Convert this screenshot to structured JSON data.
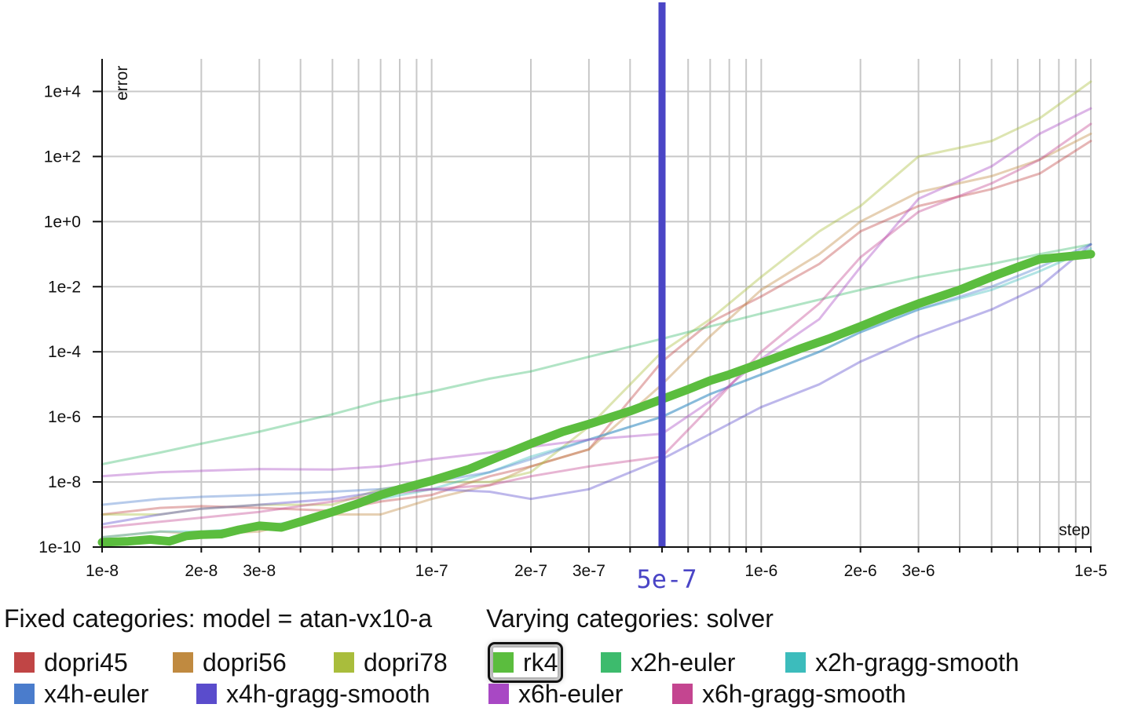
{
  "chart_data": {
    "type": "line",
    "x_scale": "log",
    "y_scale": "log",
    "xlim": [
      1e-08,
      1e-05
    ],
    "ylim": [
      1e-10,
      100000.0
    ],
    "xlabel": "step",
    "ylabel": "error",
    "grid": true,
    "x_ticks": [
      {
        "value": 1e-08,
        "label": "1e-8"
      },
      {
        "value": 2e-08,
        "label": "2e-8"
      },
      {
        "value": 3e-08,
        "label": "3e-8"
      },
      {
        "value": 1e-07,
        "label": "1e-7"
      },
      {
        "value": 2e-07,
        "label": "2e-7"
      },
      {
        "value": 3e-07,
        "label": "3e-7"
      },
      {
        "value": 1e-06,
        "label": "1e-6"
      },
      {
        "value": 2e-06,
        "label": "2e-6"
      },
      {
        "value": 3e-06,
        "label": "3e-6"
      },
      {
        "value": 1e-05,
        "label": "1e-5"
      }
    ],
    "y_ticks": [
      {
        "value": 1e-10,
        "label": "1e-10"
      },
      {
        "value": 1e-08,
        "label": "1e-8"
      },
      {
        "value": 1e-06,
        "label": "1e-6"
      },
      {
        "value": 0.0001,
        "label": "1e-4"
      },
      {
        "value": 0.01,
        "label": "1e-2"
      },
      {
        "value": 1,
        "label": "1e+0"
      },
      {
        "value": 100,
        "label": "1e+2"
      },
      {
        "value": 10000,
        "label": "1e+4"
      }
    ],
    "cursor": {
      "x": 5e-07,
      "label": "5e-7",
      "color": "#4a45c6"
    },
    "highlighted_series": "rk4",
    "series": [
      {
        "name": "dopri45",
        "color": "#c04545",
        "points": [
          [
            1e-08,
            1e-09
          ],
          [
            1.5e-08,
            1.6e-09
          ],
          [
            2e-08,
            1.8e-09
          ],
          [
            3e-08,
            1.6e-09
          ],
          [
            5e-08,
            1.3e-09
          ],
          [
            7e-08,
            2.5e-09
          ],
          [
            1e-07,
            4e-09
          ],
          [
            1.5e-07,
            1.5e-08
          ],
          [
            2e-07,
            3e-08
          ],
          [
            3e-07,
            1e-07
          ],
          [
            5e-07,
            5e-05
          ],
          [
            7e-07,
            0.0008
          ],
          [
            1e-06,
            0.005
          ],
          [
            1.5e-06,
            0.05
          ],
          [
            2e-06,
            0.5
          ],
          [
            3e-06,
            3
          ],
          [
            5e-06,
            10
          ],
          [
            7e-06,
            30
          ],
          [
            1e-05,
            300
          ]
        ]
      },
      {
        "name": "dopri56",
        "color": "#c08a40",
        "points": [
          [
            1e-08,
            2e-10
          ],
          [
            1.5e-08,
            3e-10
          ],
          [
            2e-08,
            2.5e-10
          ],
          [
            3e-08,
            3e-10
          ],
          [
            5e-08,
            1e-09
          ],
          [
            7e-08,
            1e-09
          ],
          [
            1e-07,
            3e-09
          ],
          [
            1.5e-07,
            8e-09
          ],
          [
            2e-07,
            3e-08
          ],
          [
            3e-07,
            1e-07
          ],
          [
            5e-07,
            1e-05
          ],
          [
            7e-07,
            0.0003
          ],
          [
            1e-06,
            0.008
          ],
          [
            1.5e-06,
            0.1
          ],
          [
            2e-06,
            1
          ],
          [
            3e-06,
            8
          ],
          [
            5e-06,
            25
          ],
          [
            7e-06,
            80
          ],
          [
            1e-05,
            500
          ]
        ]
      },
      {
        "name": "dopri78",
        "color": "#a9bd3c",
        "points": [
          [
            1e-08,
            1e-09
          ],
          [
            1.5e-08,
            1e-09
          ],
          [
            2e-08,
            1.5e-09
          ],
          [
            3e-08,
            2e-09
          ],
          [
            5e-08,
            2e-09
          ],
          [
            7e-08,
            6e-09
          ],
          [
            1e-07,
            1e-08
          ],
          [
            1.5e-07,
            1e-08
          ],
          [
            2e-07,
            2e-08
          ],
          [
            3e-07,
            5e-07
          ],
          [
            5e-07,
            0.0001
          ],
          [
            7e-07,
            0.001
          ],
          [
            1e-06,
            0.02
          ],
          [
            1.5e-06,
            0.5
          ],
          [
            2e-06,
            3
          ],
          [
            3e-06,
            100
          ],
          [
            5e-06,
            300
          ],
          [
            7e-06,
            1500
          ],
          [
            1e-05,
            20000
          ]
        ]
      },
      {
        "name": "rk4",
        "color": "#5bbd3e",
        "points": [
          [
            1e-08,
            1.4e-10
          ],
          [
            1.2e-08,
            1.5e-10
          ],
          [
            1.4e-08,
            1.7e-10
          ],
          [
            1.6e-08,
            1.5e-10
          ],
          [
            1.8e-08,
            2.2e-10
          ],
          [
            2e-08,
            2.4e-10
          ],
          [
            2.3e-08,
            2.5e-10
          ],
          [
            2.6e-08,
            3.4e-10
          ],
          [
            3e-08,
            4.5e-10
          ],
          [
            3.5e-08,
            4e-10
          ],
          [
            4e-08,
            6e-10
          ],
          [
            5e-08,
            1.2e-09
          ],
          [
            6e-08,
            2.2e-09
          ],
          [
            7e-08,
            4e-09
          ],
          [
            8e-08,
            6e-09
          ],
          [
            1e-07,
            1.1e-08
          ],
          [
            1.3e-07,
            2.5e-08
          ],
          [
            1.6e-07,
            6e-08
          ],
          [
            2e-07,
            1.5e-07
          ],
          [
            2.5e-07,
            3.5e-07
          ],
          [
            3e-07,
            6e-07
          ],
          [
            4e-07,
            1.5e-06
          ],
          [
            5e-07,
            3.5e-06
          ],
          [
            6e-07,
            7e-06
          ],
          [
            7e-07,
            1.3e-05
          ],
          [
            8e-07,
            2e-05
          ],
          [
            1e-06,
            4.5e-05
          ],
          [
            1.3e-06,
            0.00012
          ],
          [
            1.6e-06,
            0.00025
          ],
          [
            2e-06,
            0.0006
          ],
          [
            2.5e-06,
            0.0015
          ],
          [
            3e-06,
            0.003
          ],
          [
            4e-06,
            0.008
          ],
          [
            5e-06,
            0.02
          ],
          [
            6e-06,
            0.04
          ],
          [
            7e-06,
            0.07
          ],
          [
            8e-06,
            0.08
          ],
          [
            1e-05,
            0.1
          ]
        ]
      },
      {
        "name": "x2h-euler",
        "color": "#3dbb6d",
        "points": [
          [
            1e-08,
            3.5e-08
          ],
          [
            1.5e-08,
            8e-08
          ],
          [
            2e-08,
            1.5e-07
          ],
          [
            3e-08,
            3.5e-07
          ],
          [
            5e-08,
            1.2e-06
          ],
          [
            7e-08,
            3e-06
          ],
          [
            1e-07,
            6e-06
          ],
          [
            1.5e-07,
            1.5e-05
          ],
          [
            2e-07,
            2.5e-05
          ],
          [
            3e-07,
            7e-05
          ],
          [
            5e-07,
            0.00025
          ],
          [
            7e-07,
            0.0006
          ],
          [
            1e-06,
            0.0015
          ],
          [
            1.5e-06,
            0.004
          ],
          [
            2e-06,
            0.008
          ],
          [
            3e-06,
            0.02
          ],
          [
            5e-06,
            0.05
          ],
          [
            7e-06,
            0.1
          ],
          [
            1e-05,
            0.2
          ]
        ]
      },
      {
        "name": "x2h-gragg-smooth",
        "color": "#3cbcbc",
        "points": [
          [
            1e-08,
            2e-10
          ],
          [
            1.5e-08,
            3e-10
          ],
          [
            2e-08,
            3e-10
          ],
          [
            3e-08,
            4e-10
          ],
          [
            5e-08,
            1e-09
          ],
          [
            7e-08,
            3e-09
          ],
          [
            1e-07,
            6e-09
          ],
          [
            1.5e-07,
            2e-08
          ],
          [
            2e-07,
            6e-08
          ],
          [
            3e-07,
            2e-07
          ],
          [
            5e-07,
            1e-06
          ],
          [
            7e-07,
            5e-06
          ],
          [
            1e-06,
            2e-05
          ],
          [
            1.5e-06,
            0.0001
          ],
          [
            2e-06,
            0.0004
          ],
          [
            3e-06,
            0.002
          ],
          [
            5e-06,
            0.008
          ],
          [
            7e-06,
            0.03
          ],
          [
            1e-05,
            0.15
          ]
        ]
      },
      {
        "name": "x4h-euler",
        "color": "#4a7ccc",
        "points": [
          [
            1e-08,
            2e-09
          ],
          [
            1.5e-08,
            3e-09
          ],
          [
            2e-08,
            3.5e-09
          ],
          [
            3e-08,
            4e-09
          ],
          [
            5e-08,
            5e-09
          ],
          [
            7e-08,
            6e-09
          ],
          [
            1e-07,
            1e-08
          ],
          [
            1.5e-07,
            2e-08
          ],
          [
            2e-07,
            5e-08
          ],
          [
            3e-07,
            2e-07
          ],
          [
            5e-07,
            1e-06
          ],
          [
            7e-07,
            5e-06
          ],
          [
            1e-06,
            2e-05
          ],
          [
            1.5e-06,
            0.0001
          ],
          [
            2e-06,
            0.0004
          ],
          [
            3e-06,
            0.002
          ],
          [
            5e-06,
            0.01
          ],
          [
            7e-06,
            0.04
          ],
          [
            1e-05,
            0.2
          ]
        ]
      },
      {
        "name": "x4h-gragg-smooth",
        "color": "#5a4ccc",
        "points": [
          [
            1e-08,
            5e-10
          ],
          [
            1.5e-08,
            1e-09
          ],
          [
            2e-08,
            1.5e-09
          ],
          [
            3e-08,
            2e-09
          ],
          [
            5e-08,
            3e-09
          ],
          [
            7e-08,
            5e-09
          ],
          [
            1e-07,
            6e-09
          ],
          [
            1.5e-07,
            5e-09
          ],
          [
            2e-07,
            3e-09
          ],
          [
            3e-07,
            6e-09
          ],
          [
            5e-07,
            5e-08
          ],
          [
            7e-07,
            3e-07
          ],
          [
            1e-06,
            2e-06
          ],
          [
            1.5e-06,
            1e-05
          ],
          [
            2e-06,
            5e-05
          ],
          [
            3e-06,
            0.0003
          ],
          [
            5e-06,
            0.002
          ],
          [
            7e-06,
            0.01
          ],
          [
            1e-05,
            0.2
          ]
        ]
      },
      {
        "name": "x6h-euler",
        "color": "#a848c4",
        "points": [
          [
            1e-08,
            1.5e-08
          ],
          [
            1.5e-08,
            2e-08
          ],
          [
            2e-08,
            2.2e-08
          ],
          [
            3e-08,
            2.5e-08
          ],
          [
            5e-08,
            2.4e-08
          ],
          [
            7e-08,
            3e-08
          ],
          [
            1e-07,
            5e-08
          ],
          [
            1.5e-07,
            8e-08
          ],
          [
            2e-07,
            1.2e-07
          ],
          [
            3e-07,
            2e-07
          ],
          [
            5e-07,
            3e-07
          ],
          [
            7e-07,
            3e-06
          ],
          [
            1e-06,
            6e-05
          ],
          [
            1.5e-06,
            0.001
          ],
          [
            2e-06,
            0.04
          ],
          [
            3e-06,
            5
          ],
          [
            5e-06,
            50
          ],
          [
            7e-06,
            500
          ],
          [
            1e-05,
            3000
          ]
        ]
      },
      {
        "name": "x6h-gragg-smooth",
        "color": "#c44590",
        "points": [
          [
            1e-08,
            4e-10
          ],
          [
            1.5e-08,
            6e-10
          ],
          [
            2e-08,
            8e-10
          ],
          [
            3e-08,
            1.2e-09
          ],
          [
            5e-08,
            2.5e-09
          ],
          [
            7e-08,
            4e-09
          ],
          [
            1e-07,
            6e-09
          ],
          [
            1.5e-07,
            8e-09
          ],
          [
            2e-07,
            1.5e-08
          ],
          [
            3e-07,
            3e-08
          ],
          [
            5e-07,
            6e-08
          ],
          [
            7e-07,
            2e-06
          ],
          [
            1e-06,
            0.0001
          ],
          [
            1.5e-06,
            0.003
          ],
          [
            2e-06,
            0.08
          ],
          [
            3e-06,
            2
          ],
          [
            5e-06,
            15
          ],
          [
            7e-06,
            80
          ],
          [
            1e-05,
            1000
          ]
        ]
      }
    ]
  },
  "captions": {
    "fixed": "Fixed categories: model = atan-vx10-a",
    "varying": "Varying categories: solver"
  },
  "legend": [
    {
      "label": "dopri45",
      "color": "#c04545"
    },
    {
      "label": "dopri56",
      "color": "#c08a40"
    },
    {
      "label": "dopri78",
      "color": "#a9bd3c"
    },
    {
      "label": "rk4",
      "color": "#5bbd3e",
      "selected": true
    },
    {
      "label": "x2h-euler",
      "color": "#3dbb6d"
    },
    {
      "label": "x2h-gragg-smooth",
      "color": "#3cbcbc"
    },
    {
      "label": "x4h-euler",
      "color": "#4a7ccc"
    },
    {
      "label": "x4h-gragg-smooth",
      "color": "#5a4ccc"
    },
    {
      "label": "x6h-euler",
      "color": "#a848c4"
    },
    {
      "label": "x6h-gragg-smooth",
      "color": "#c44590"
    }
  ]
}
